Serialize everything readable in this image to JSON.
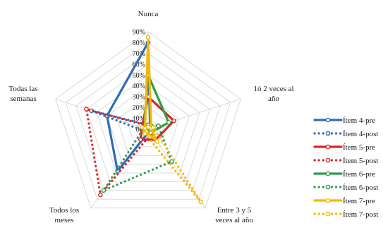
{
  "chart_data": {
    "type": "radar",
    "title": "",
    "axes": [
      "Nunca",
      "1ó 2 veces al año",
      "Entre 3 y 5 veces al año",
      "Todos los meses",
      "Todas las semanas"
    ],
    "axis_label_lines": [
      [
        "Nunca"
      ],
      [
        "1ó 2 veces al",
        "año"
      ],
      [
        "Entre 3 y 5",
        "veces al año"
      ],
      [
        "Todos los",
        "meses"
      ],
      [
        "Todas las",
        "semanas"
      ]
    ],
    "radial_range": [
      0,
      90
    ],
    "radial_ticks": [
      "0%",
      "10%",
      "20%",
      "30%",
      "40%",
      "50%",
      "60%",
      "70%",
      "80%",
      "90%"
    ],
    "grid": true,
    "legend_position": "right",
    "series": [
      {
        "name": "Ítem 4-pre",
        "color": "#2e6db4",
        "dash": "solid",
        "marker": "circle",
        "values": [
          80,
          2,
          2,
          48,
          40
        ]
      },
      {
        "name": "Ítem 4-post",
        "color": "#2e6db4",
        "dash": "dotted",
        "marker": "circle",
        "values": [
          4,
          3,
          2,
          3,
          55
        ]
      },
      {
        "name": "Ítem 5-pre",
        "color": "#d9232a",
        "dash": "solid",
        "marker": "circle",
        "values": [
          30,
          25,
          12,
          12,
          6
        ]
      },
      {
        "name": "Ítem 5-post",
        "color": "#d9232a",
        "dash": "dotted",
        "marker": "circle",
        "values": [
          3,
          5,
          5,
          75,
          60
        ]
      },
      {
        "name": "Ítem 6-pre",
        "color": "#2e9e48",
        "dash": "solid",
        "marker": "circle",
        "values": [
          50,
          20,
          4,
          2,
          4
        ]
      },
      {
        "name": "Ítem 6-post",
        "color": "#2e9e48",
        "dash": "dotted",
        "marker": "circle",
        "values": [
          4,
          10,
          37,
          70,
          4
        ]
      },
      {
        "name": "Ítem 7-pre",
        "color": "#f5b800",
        "dash": "solid",
        "marker": "circle",
        "values": [
          85,
          3,
          14,
          3,
          3
        ]
      },
      {
        "name": "Ítem 7-post",
        "color": "#f5b800",
        "dash": "dotted",
        "marker": "circle",
        "values": [
          2,
          5,
          83,
          5,
          6
        ]
      }
    ]
  }
}
